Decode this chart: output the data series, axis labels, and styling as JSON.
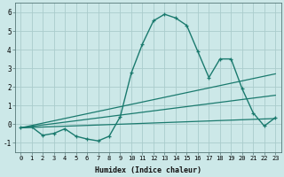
{
  "xlabel": "Humidex (Indice chaleur)",
  "background_color": "#cce8e8",
  "line_color": "#1a7a6e",
  "grid_color": "#aacccc",
  "xlim": [
    -0.5,
    23.5
  ],
  "ylim": [
    -1.5,
    6.5
  ],
  "xticks": [
    0,
    1,
    2,
    3,
    4,
    5,
    6,
    7,
    8,
    9,
    10,
    11,
    12,
    13,
    14,
    15,
    16,
    17,
    18,
    19,
    20,
    21,
    22,
    23
  ],
  "yticks": [
    -1,
    0,
    1,
    2,
    3,
    4,
    5,
    6
  ],
  "curve": {
    "x": [
      0,
      1,
      2,
      3,
      4,
      5,
      6,
      7,
      8,
      9,
      10,
      11,
      12,
      13,
      14,
      15,
      16,
      17,
      18,
      19,
      20,
      21,
      22,
      23
    ],
    "y": [
      -0.2,
      -0.15,
      -0.6,
      -0.5,
      -0.25,
      -0.65,
      -0.8,
      -0.9,
      -0.65,
      0.4,
      2.75,
      4.3,
      5.55,
      5.9,
      5.7,
      5.3,
      3.9,
      2.5,
      3.5,
      3.5,
      1.9,
      0.6,
      -0.1,
      0.35
    ]
  },
  "line1": {
    "x": [
      0,
      23
    ],
    "y": [
      -0.2,
      2.7
    ]
  },
  "line2": {
    "x": [
      0,
      23
    ],
    "y": [
      -0.2,
      1.55
    ]
  },
  "line3": {
    "x": [
      0,
      23
    ],
    "y": [
      -0.2,
      0.3
    ]
  }
}
